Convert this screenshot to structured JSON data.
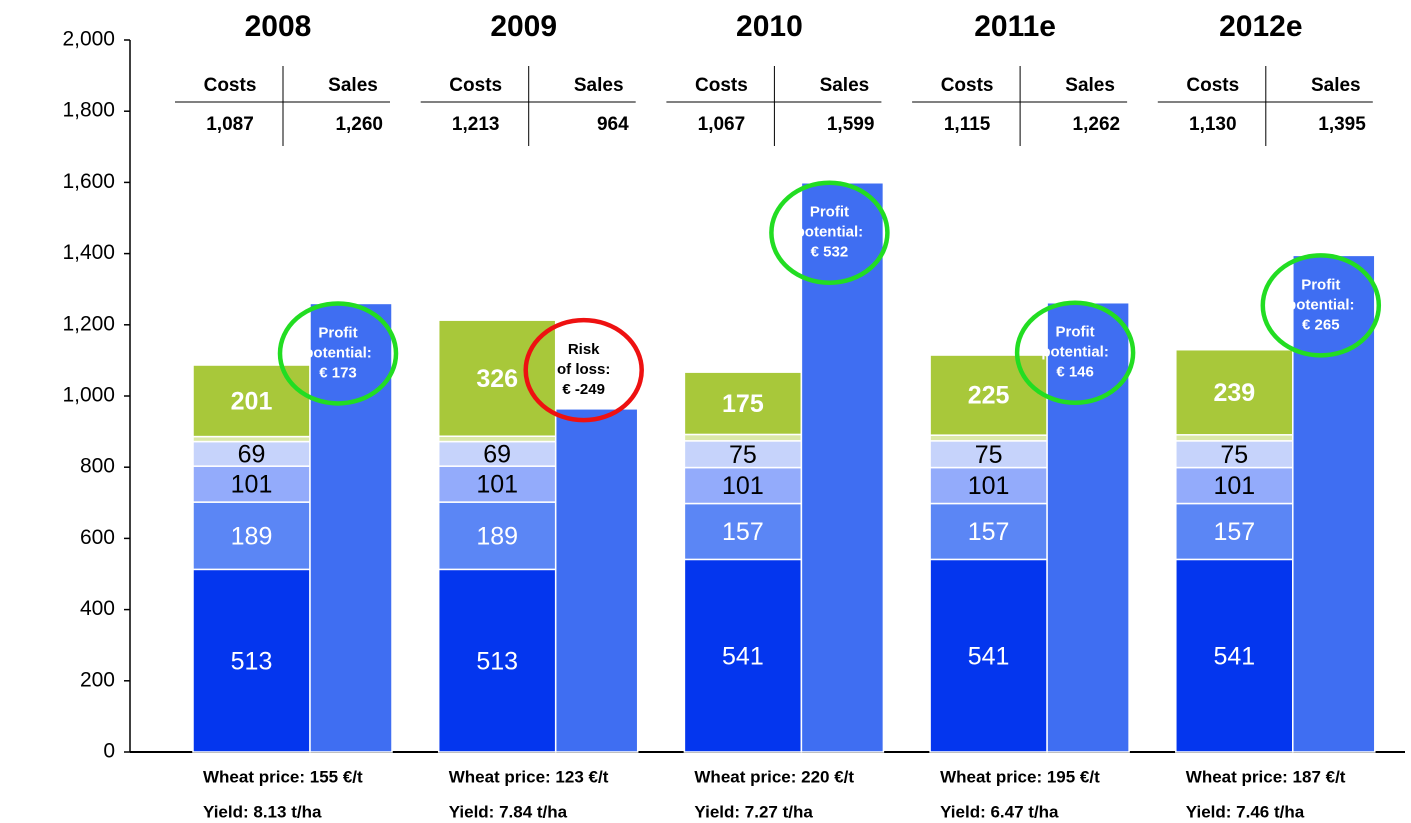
{
  "chart_data": {
    "type": "stacked_bar_pair",
    "categories": [
      "2008",
      "2009",
      "2010",
      "2011e",
      "2012e"
    ],
    "header_labels": [
      "Costs",
      "Sales"
    ],
    "cost_series": [
      {
        "color": "#0436ee",
        "text_color": "#ffffff",
        "values": [
          513,
          513,
          541,
          541,
          541
        ]
      },
      {
        "color": "#5b86f5",
        "text_color": "#ffffff",
        "values": [
          189,
          189,
          157,
          157,
          157
        ]
      },
      {
        "color": "#93abfb",
        "text_color": "#000000",
        "values": [
          101,
          101,
          101,
          101,
          101
        ]
      },
      {
        "color": "#c6d3fb",
        "text_color": "#000000",
        "values": [
          69,
          69,
          75,
          75,
          75
        ]
      },
      {
        "color": "#dbe8a8",
        "text_color": "#000000",
        "values": [
          14,
          15,
          18,
          16,
          17
        ]
      },
      {
        "color": "#a8c83a",
        "text_color": "#ffffff",
        "values": [
          201,
          326,
          175,
          225,
          239
        ]
      }
    ],
    "cost_totals": {
      "values": [
        1087,
        1213,
        1067,
        1115,
        1130
      ],
      "value_labels": [
        "1,087",
        "1,213",
        "1,067",
        "1,115",
        "1,130"
      ]
    },
    "sales": {
      "color": "#3f6ef2",
      "values": [
        1260,
        964,
        1599,
        1262,
        1395
      ],
      "value_labels": [
        "1,260",
        "964",
        "1,599",
        "1,262",
        "1,395"
      ]
    },
    "annotations": [
      {
        "lines": [
          "Profit",
          "potential:",
          "€ 173"
        ],
        "color": "#22dd22",
        "text_color": "#ffffff"
      },
      {
        "lines": [
          "Risk",
          "of loss:",
          "€ -249"
        ],
        "color": "#ee1111",
        "text_color": "#000000"
      },
      {
        "lines": [
          "Profit",
          "potential:",
          "€ 532"
        ],
        "color": "#22dd22",
        "text_color": "#ffffff"
      },
      {
        "lines": [
          "Profit",
          "potential:",
          "€ 146"
        ],
        "color": "#22dd22",
        "text_color": "#ffffff"
      },
      {
        "lines": [
          "Profit",
          "potential:",
          "€ 265"
        ],
        "color": "#22dd22",
        "text_color": "#ffffff"
      }
    ],
    "footer": {
      "price": [
        "Wheat price: 155 €/t",
        "Wheat price: 123 €/t",
        "Wheat price: 220 €/t",
        "Wheat price: 195 €/t",
        "Wheat price: 187 €/t"
      ],
      "yield": [
        "Yield: 8.13 t/ha",
        "Yield: 7.84 t/ha",
        "Yield: 7.27 t/ha",
        "Yield: 6.47 t/ha",
        "Yield: 7.46 t/ha"
      ]
    },
    "ylim": [
      0,
      2000
    ],
    "yticks": [
      0,
      200,
      400,
      600,
      800,
      {
        "value": 1000,
        "label": "1,000"
      },
      {
        "value": 1200,
        "label": "1,200"
      },
      {
        "value": 1400,
        "label": "1,400"
      },
      {
        "value": 1600,
        "label": "1,600"
      },
      {
        "value": 1800,
        "label": "1,800"
      },
      {
        "value": 2000,
        "label": "2,000"
      }
    ]
  }
}
